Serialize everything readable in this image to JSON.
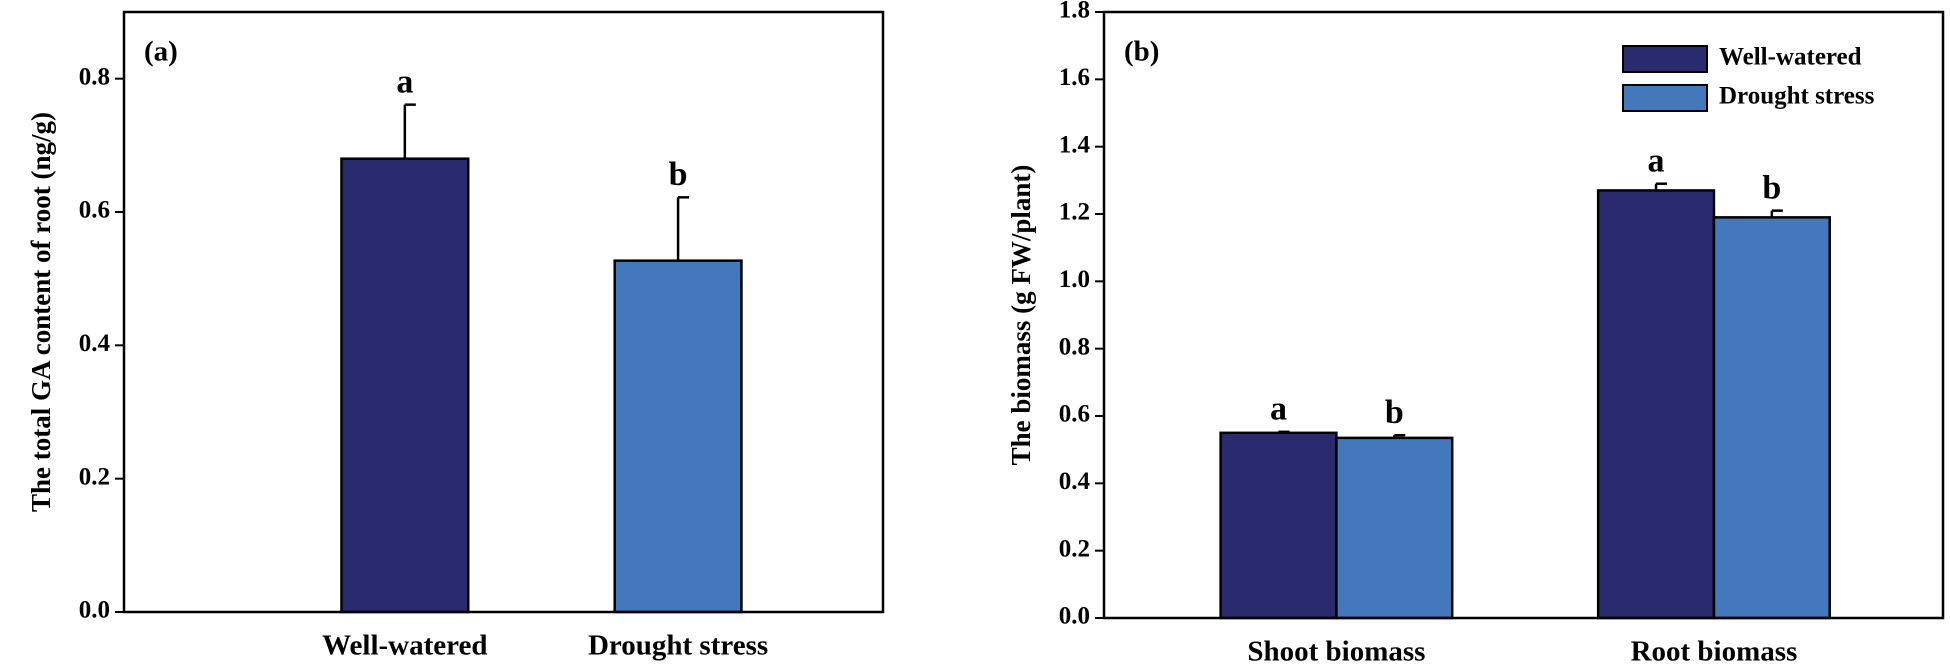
{
  "chart_data": [
    {
      "type": "bar",
      "panel_label": "(a)",
      "ylabel": "The total GA content of root  (ng/g)",
      "categories": [
        "Well-watered",
        "Drought stress"
      ],
      "values": [
        0.68,
        0.527
      ],
      "errors": [
        0.081,
        0.095
      ],
      "annotations": [
        "a",
        "b"
      ],
      "colors": [
        "#2a2b6e",
        "#4478bd"
      ],
      "ylim": [
        0,
        0.9
      ],
      "yticks": [
        {
          "value": 0,
          "label": "0.0"
        },
        0.2,
        0.4,
        0.6,
        0.8
      ]
    },
    {
      "type": "bar",
      "panel_label": "(b)",
      "ylabel": "The biomass (g FW/plant)",
      "categories": [
        "Shoot biomass",
        "Root biomass"
      ],
      "series": [
        {
          "name": "Well-watered",
          "color": "#2a2b6e",
          "values": [
            0.55,
            1.27
          ],
          "errors": [
            0.003,
            0.02
          ],
          "annotations": [
            "a",
            "a"
          ]
        },
        {
          "name": "Drought stress",
          "color": "#4478bd",
          "values": [
            0.535,
            1.19
          ],
          "errors": [
            0.008,
            0.02
          ],
          "annotations": [
            "b",
            "b"
          ]
        }
      ],
      "legend": "upper right",
      "ylim": [
        0,
        1.8
      ],
      "yticks": [
        {
          "value": 0,
          "label": "0.0"
        },
        0.2,
        0.4,
        0.6,
        0.8,
        {
          "value": 1,
          "label": "1.0"
        },
        1.2,
        1.4,
        1.6,
        1.8
      ]
    }
  ]
}
